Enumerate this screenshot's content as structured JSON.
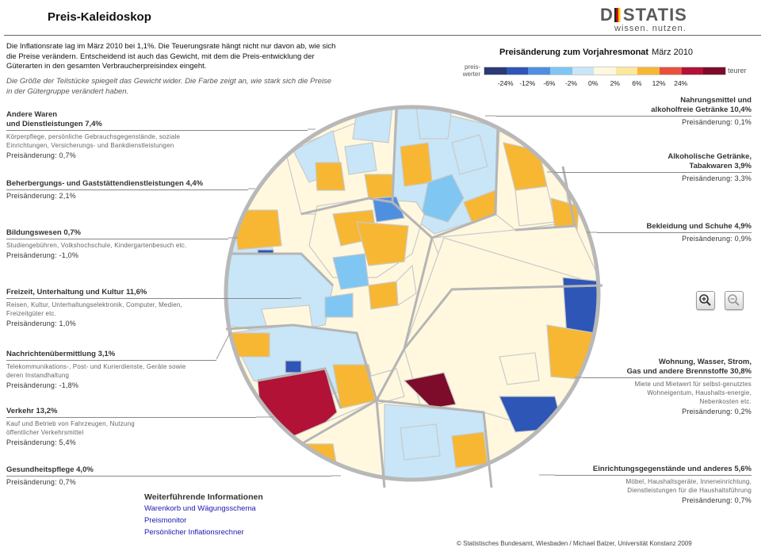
{
  "title": "Preis-Kaleidoskop",
  "logo": {
    "word_a": "D",
    "word_b": "STATIS",
    "tagline": "wissen. nutzen."
  },
  "intro": {
    "text": "Die Inflationsrate lag im März 2010 bei 1,1%. Die Teuerungsrate hängt nicht nur davon ab, wie sich die Preise verändern. Entscheidend ist auch das Gewicht, mit dem die Preis-entwicklung der Güterarten in den gesamten Verbraucherpreisindex eingeht.",
    "note": "Die Größe der Teilstücke spiegelt das Gewicht wider. Die Farbe zeigt an, wie stark sich die Preise in der Gütergruppe verändert haben."
  },
  "legend": {
    "title": "Preisänderung zum Vorjahresmonat",
    "month": "März 2010",
    "low_label": "preis-werter",
    "high_label": "teurer",
    "ticks": [
      "-24%",
      "-12%",
      "-6%",
      "-2%",
      "0%",
      "2%",
      "6%",
      "12%",
      "24%"
    ],
    "colors": [
      "#2a3a74",
      "#2e56b7",
      "#4f8fe0",
      "#7fc6f2",
      "#c8e6f7",
      "#fff8df",
      "#fde79a",
      "#f7b733",
      "#e8503a",
      "#b11236",
      "#7d0b2a"
    ]
  },
  "categories_left": [
    {
      "title": "Andere Waren und Dienstleistungen 7,4%",
      "title_l1": "Andere Waren",
      "title_l2": "und Dienstleistungen 7,4%",
      "desc": "Körperpflege, persönliche Gebrauchsgegenstände, soziale Einrichtungen, Versicherungs- und Bankdienstleistungen",
      "change": "Preisänderung: 0,7%"
    },
    {
      "title": "Beherbergungs- und Gaststättendienstleistungen 4,4%",
      "change": "Preisänderung: 2,1%"
    },
    {
      "title": "Bildungswesen 0,7%",
      "desc": "Studiengebühren, Volkshochschule, Kindergartenbesuch etc.",
      "change": "Preisänderung: -1,0%"
    },
    {
      "title": "Freizeit, Unterhaltung und Kultur 11,6%",
      "desc": "Reisen, Kultur, Unterhaltungselektronik, Computer, Medien, Freizeitgüter etc.",
      "change": "Preisänderung: 1,0%"
    },
    {
      "title": "Nachrichtenübermittlung 3,1%",
      "desc": "Telekommunikations-, Post- und Kurierdienste, Geräte sowie deren Instandhaltung",
      "change": "Preisänderung: -1,8%"
    },
    {
      "title": "Verkehr 13,2%",
      "desc": "Kauf und Betrieb von Fahrzeugen, Nutzung öffentlicher Verkehrsmittel",
      "change": "Preisänderung: 5,4%"
    },
    {
      "title": "Gesundheitspflege 4,0%",
      "change": "Preisänderung: 0,7%"
    }
  ],
  "categories_right": [
    {
      "title_l1": "Nahrungsmittel und",
      "title_l2": "alkoholfreie Getränke 10,4%",
      "change": "Preisänderung: 0,1%"
    },
    {
      "title_l1": "Alkoholische Getränke,",
      "title_l2": "Tabakwaren 3,9%",
      "change": "Preisänderung: 3,3%"
    },
    {
      "title": "Bekleidung und Schuhe 4,9%",
      "change": "Preisänderung: 0,9%"
    },
    {
      "title_l1": "Wohnung, Wasser, Strom,",
      "title_l2": "Gas und andere Brennstoffe 30,8%",
      "desc": "Miete und Mietwert für selbst-genutztes Wohneigentum, Haushalts-energie, Nebenkosten etc.",
      "change": "Preisänderung: 0,2%"
    },
    {
      "title": "Einrichtungsgegenstände und anderes 5,6%",
      "desc": "Möbel, Haushaltsgeräte, Inneneinrichtung, Dienstleistungen für die Haushaltsführung",
      "change": "Preisänderung: 0,7%"
    }
  ],
  "links": {
    "title": "Weiterführende Informationen",
    "items": [
      "Warenkorb und Wägungsschema",
      "Preismonitor",
      "Persönlicher Inflationsrechner"
    ]
  },
  "zoom": {
    "in_icon": "zoom-in-icon",
    "out_icon": "zoom-out-icon"
  },
  "copyright": "© Statistisches Bundesamt, Wiesbaden / Michael Balzer, Universität Konstanz 2009"
}
